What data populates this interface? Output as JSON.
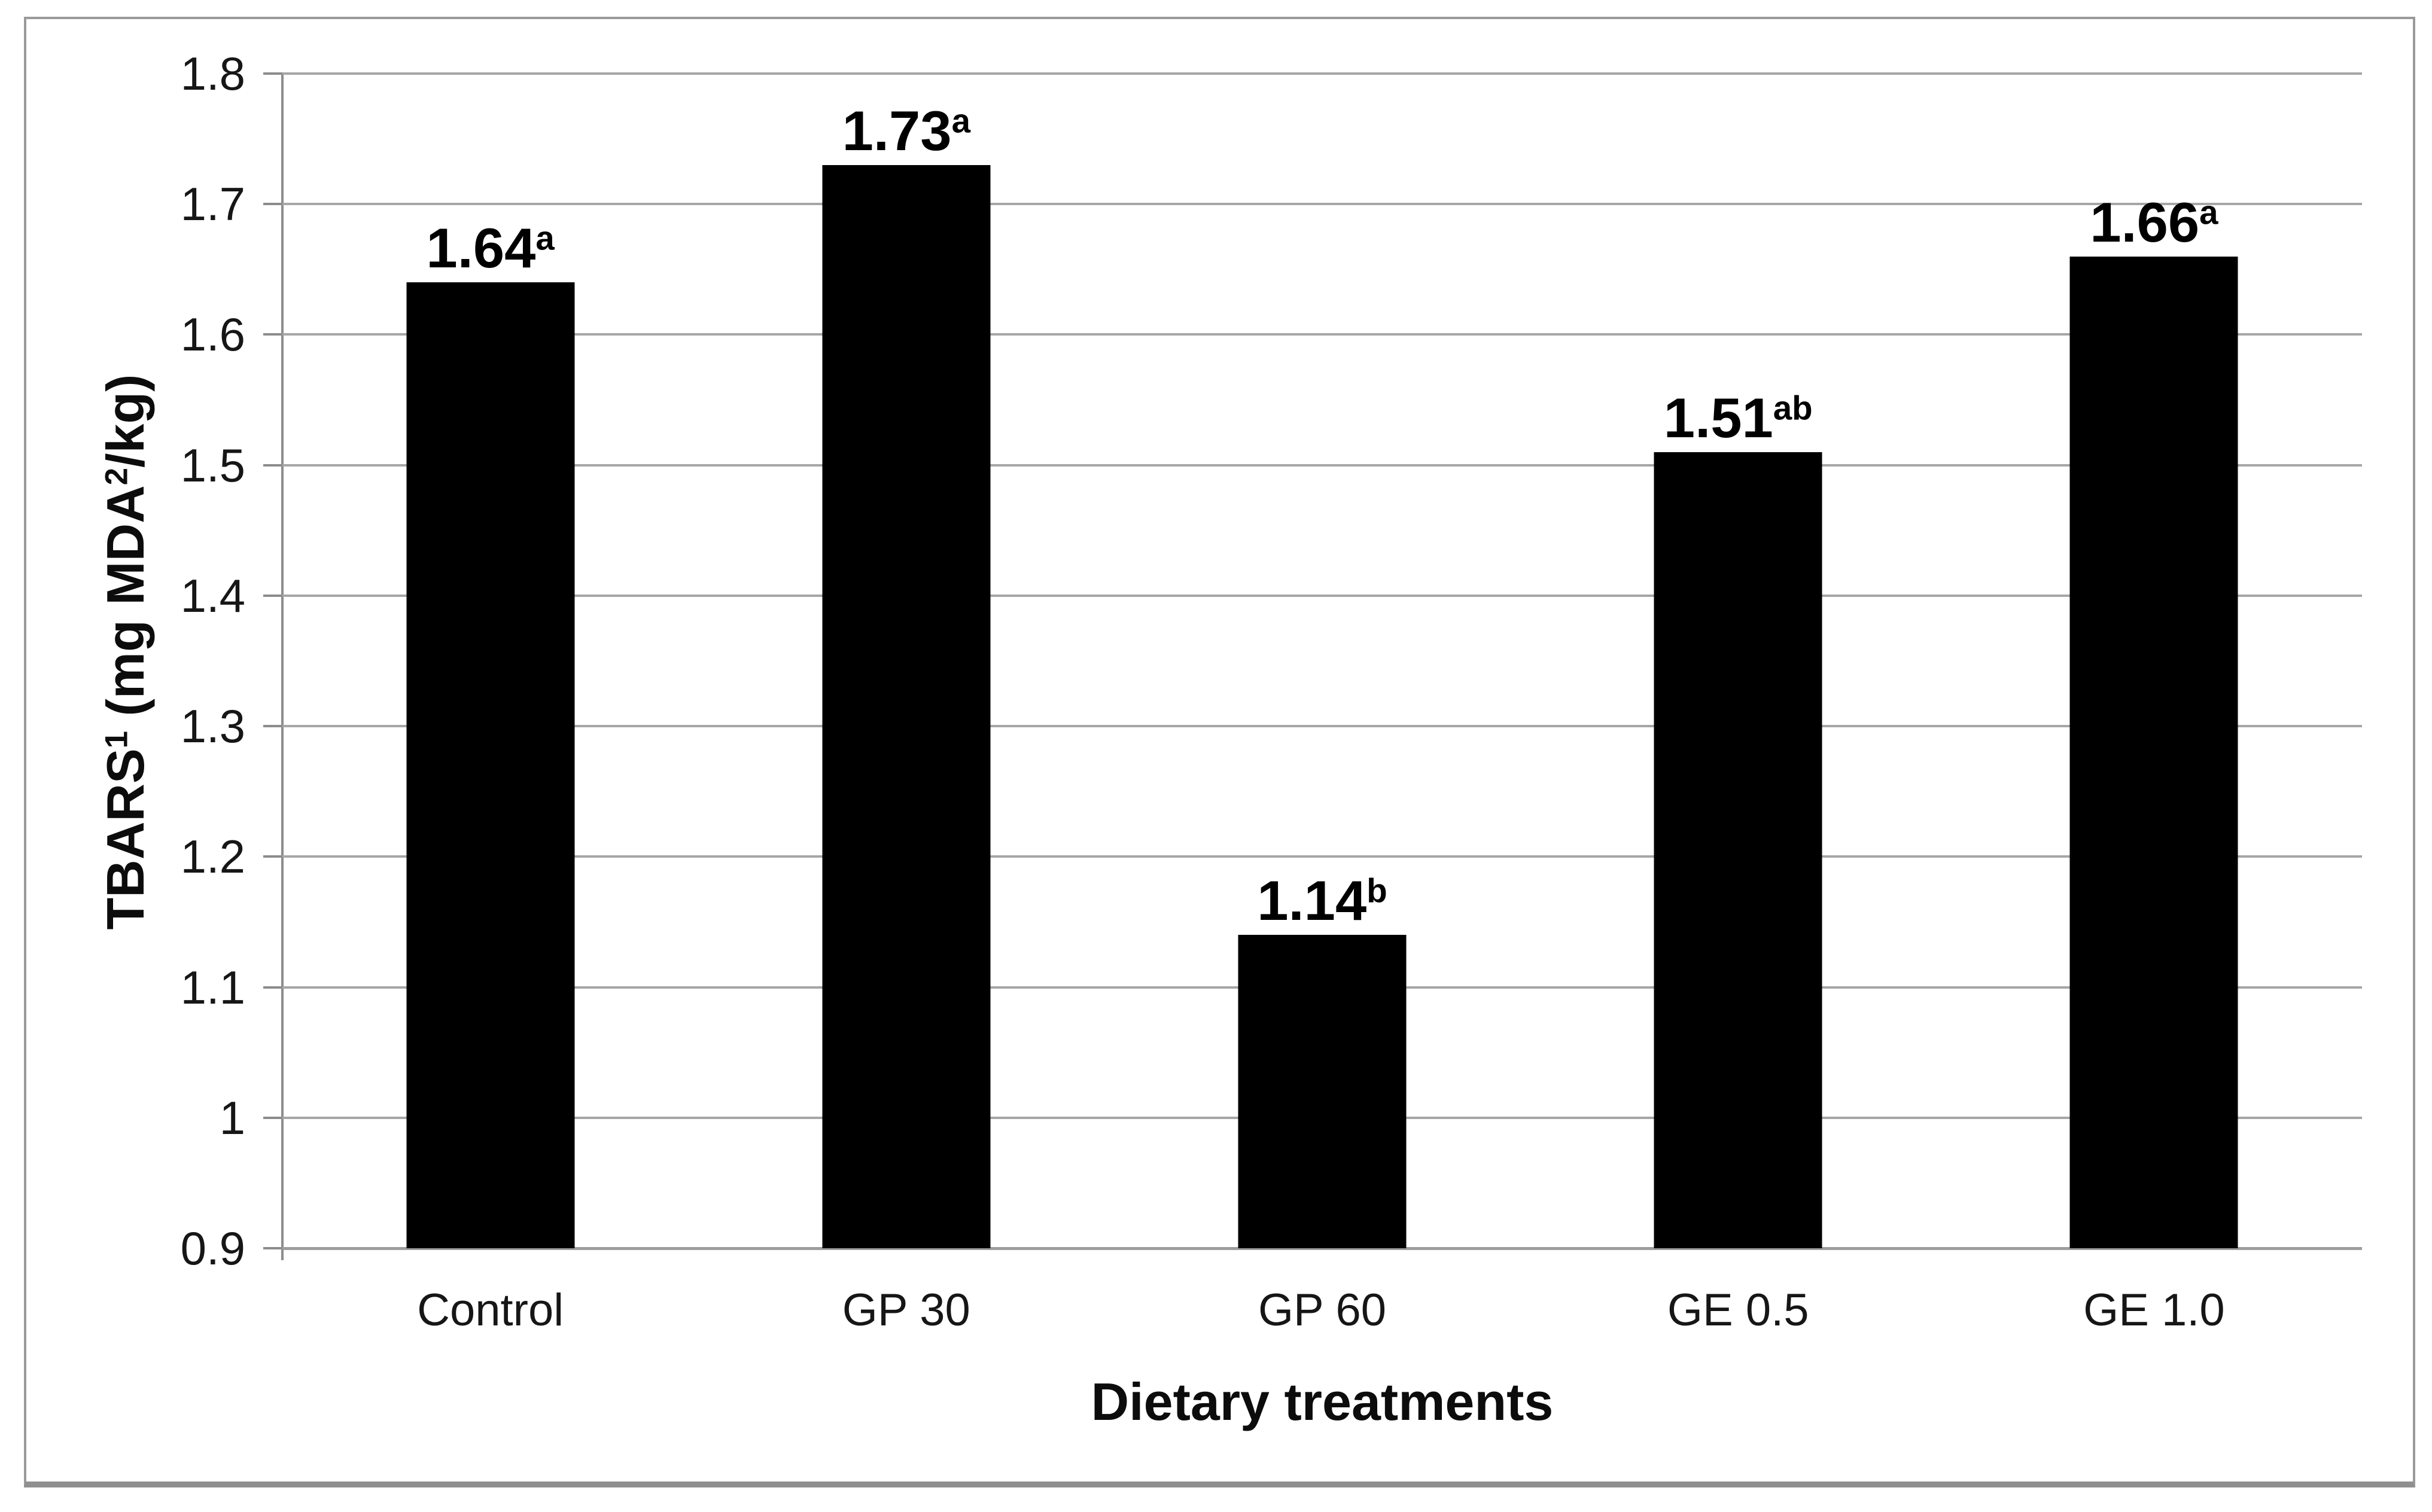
{
  "chart_data": {
    "type": "bar",
    "title": "",
    "categories": [
      "Control",
      "GP 30",
      "GP 60",
      "GE 0.5",
      "GE 1.0"
    ],
    "values": [
      1.64,
      1.73,
      1.14,
      1.51,
      1.66
    ],
    "bar_labels": [
      {
        "text": "1.64",
        "sup": "a"
      },
      {
        "text": "1.73",
        "sup": "a"
      },
      {
        "text": "1.14",
        "sup": "b"
      },
      {
        "text": "1.51",
        "sup": "ab"
      },
      {
        "text": "1.66",
        "sup": "a"
      }
    ],
    "xlabel": "Dietary treatments",
    "ylabel": "TBARS¹ (mg MDA²/kg)",
    "ylabel_parts": {
      "prefix": "TBARS",
      "sup1": "1",
      "mid": " (mg MDA",
      "sup2": "2",
      "suffix": "/kg)"
    },
    "ylim": [
      0.9,
      1.8
    ],
    "ytick_step": 0.1,
    "yticks": [
      "1.8",
      "1.7",
      "1.6",
      "1.5",
      "1.4",
      "1.3",
      "1.2",
      "1.1",
      "1",
      "0.9"
    ],
    "grid": true,
    "legend": null,
    "colors": {
      "bar": "#000000",
      "gridline": "#a6a6a6",
      "axis": "#8c8c8c",
      "text": "#161616",
      "border": "#9a9a9a",
      "bottom_edge": "#8f8f8f"
    }
  }
}
